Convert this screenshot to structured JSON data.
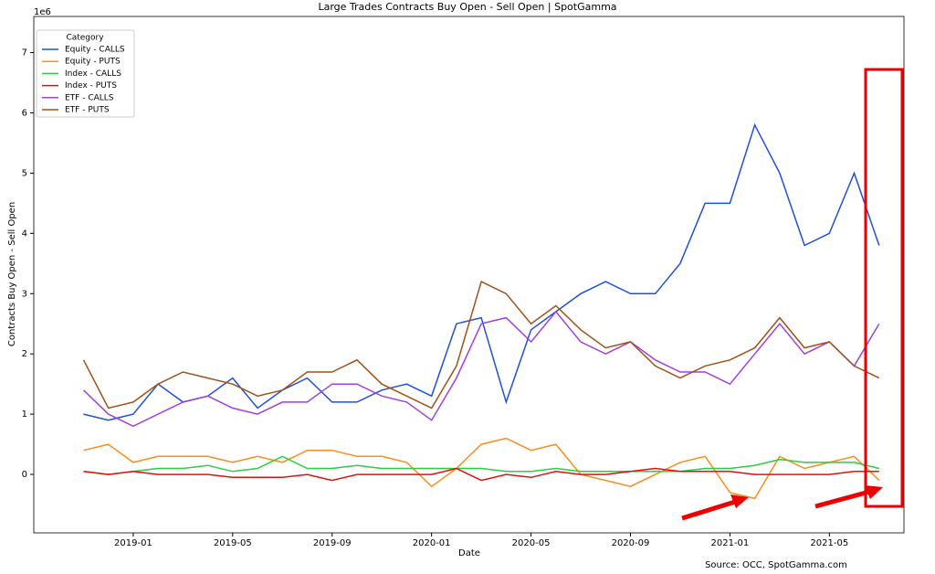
{
  "chart_data": {
    "type": "line",
    "title": "Large Trades Contracts Buy Open - Sell Open | SpotGamma",
    "x_label": "Date",
    "y_label": "Contracts Buy Open - Sell Open",
    "y_offset_label": "1e6",
    "legend_title": "Category",
    "legend_position": "upper left",
    "source": "Source: OCC, SpotGamma.com",
    "x": [
      "2018-11",
      "2018-12",
      "2019-01",
      "2019-02",
      "2019-03",
      "2019-04",
      "2019-05",
      "2019-06",
      "2019-07",
      "2019-08",
      "2019-09",
      "2019-10",
      "2019-11",
      "2019-12",
      "2020-01",
      "2020-02",
      "2020-03",
      "2020-04",
      "2020-05",
      "2020-06",
      "2020-07",
      "2020-08",
      "2020-09",
      "2020-10",
      "2020-11",
      "2020-12",
      "2021-01",
      "2021-02",
      "2021-03",
      "2021-04",
      "2021-05",
      "2021-06",
      "2021-07"
    ],
    "xlim": [
      "2018-09",
      "2021-08"
    ],
    "xticks": [
      "2019-01",
      "2019-05",
      "2019-09",
      "2020-01",
      "2020-05",
      "2020-09",
      "2021-01",
      "2021-05"
    ],
    "ylim": [
      -0.97,
      7.6
    ],
    "yticks": [
      0,
      1,
      2,
      3,
      4,
      5,
      6,
      7
    ],
    "series": [
      {
        "name": "Equity - CALLS",
        "color": "#1f4fe0",
        "values": [
          1.0,
          0.9,
          1.0,
          1.5,
          1.2,
          1.3,
          1.6,
          1.1,
          1.4,
          1.6,
          1.2,
          1.2,
          1.4,
          1.5,
          1.3,
          2.5,
          2.6,
          1.2,
          2.4,
          2.7,
          3.0,
          3.2,
          3.0,
          3.0,
          3.5,
          4.5,
          4.5,
          5.8,
          5.0,
          3.8,
          4.0,
          5.0,
          3.8
        ]
      },
      {
        "name": "Equity - PUTS",
        "color": "#ff8c1a",
        "values": [
          0.4,
          0.5,
          0.2,
          0.3,
          0.3,
          0.3,
          0.2,
          0.3,
          0.2,
          0.4,
          0.4,
          0.3,
          0.3,
          0.2,
          -0.2,
          0.1,
          0.5,
          0.6,
          0.4,
          0.5,
          0.0,
          -0.1,
          -0.2,
          0.0,
          0.2,
          0.3,
          -0.3,
          -0.4,
          0.3,
          0.1,
          0.2,
          0.3,
          -0.1
        ]
      },
      {
        "name": "Index - CALLS",
        "color": "#2ecc40",
        "values": [
          0.05,
          0.0,
          0.05,
          0.1,
          0.1,
          0.15,
          0.05,
          0.1,
          0.3,
          0.1,
          0.1,
          0.15,
          0.1,
          0.1,
          0.1,
          0.1,
          0.1,
          0.05,
          0.05,
          0.1,
          0.05,
          0.05,
          0.05,
          0.05,
          0.05,
          0.1,
          0.1,
          0.15,
          0.25,
          0.2,
          0.2,
          0.2,
          0.1
        ]
      },
      {
        "name": "Index - PUTS",
        "color": "#e01010",
        "values": [
          0.05,
          0.0,
          0.05,
          0.0,
          0.0,
          0.0,
          -0.05,
          -0.05,
          -0.05,
          0.0,
          -0.1,
          0.0,
          0.0,
          0.0,
          0.0,
          0.1,
          -0.1,
          0.0,
          -0.05,
          0.05,
          0.0,
          0.0,
          0.05,
          0.1,
          0.05,
          0.05,
          0.05,
          0.0,
          0.0,
          0.0,
          0.0,
          0.05,
          0.05
        ]
      },
      {
        "name": "ETF - CALLS",
        "color": "#a040e0",
        "values": [
          1.4,
          1.0,
          0.8,
          1.0,
          1.2,
          1.3,
          1.1,
          1.0,
          1.2,
          1.2,
          1.5,
          1.5,
          1.3,
          1.2,
          0.9,
          1.6,
          2.5,
          2.6,
          2.2,
          2.7,
          2.2,
          2.0,
          2.2,
          1.9,
          1.7,
          1.7,
          1.5,
          2.0,
          2.5,
          2.0,
          2.2,
          1.8,
          2.5
        ]
      },
      {
        "name": "ETF - PUTS",
        "color": "#a0521a",
        "values": [
          1.9,
          1.1,
          1.2,
          1.5,
          1.7,
          1.6,
          1.5,
          1.3,
          1.4,
          1.7,
          1.7,
          1.9,
          1.5,
          1.3,
          1.1,
          1.8,
          3.2,
          3.0,
          2.5,
          2.8,
          2.4,
          2.1,
          2.2,
          1.8,
          1.6,
          1.8,
          1.9,
          2.1,
          2.6,
          2.1,
          2.2,
          1.8,
          1.6
        ]
      }
    ]
  }
}
